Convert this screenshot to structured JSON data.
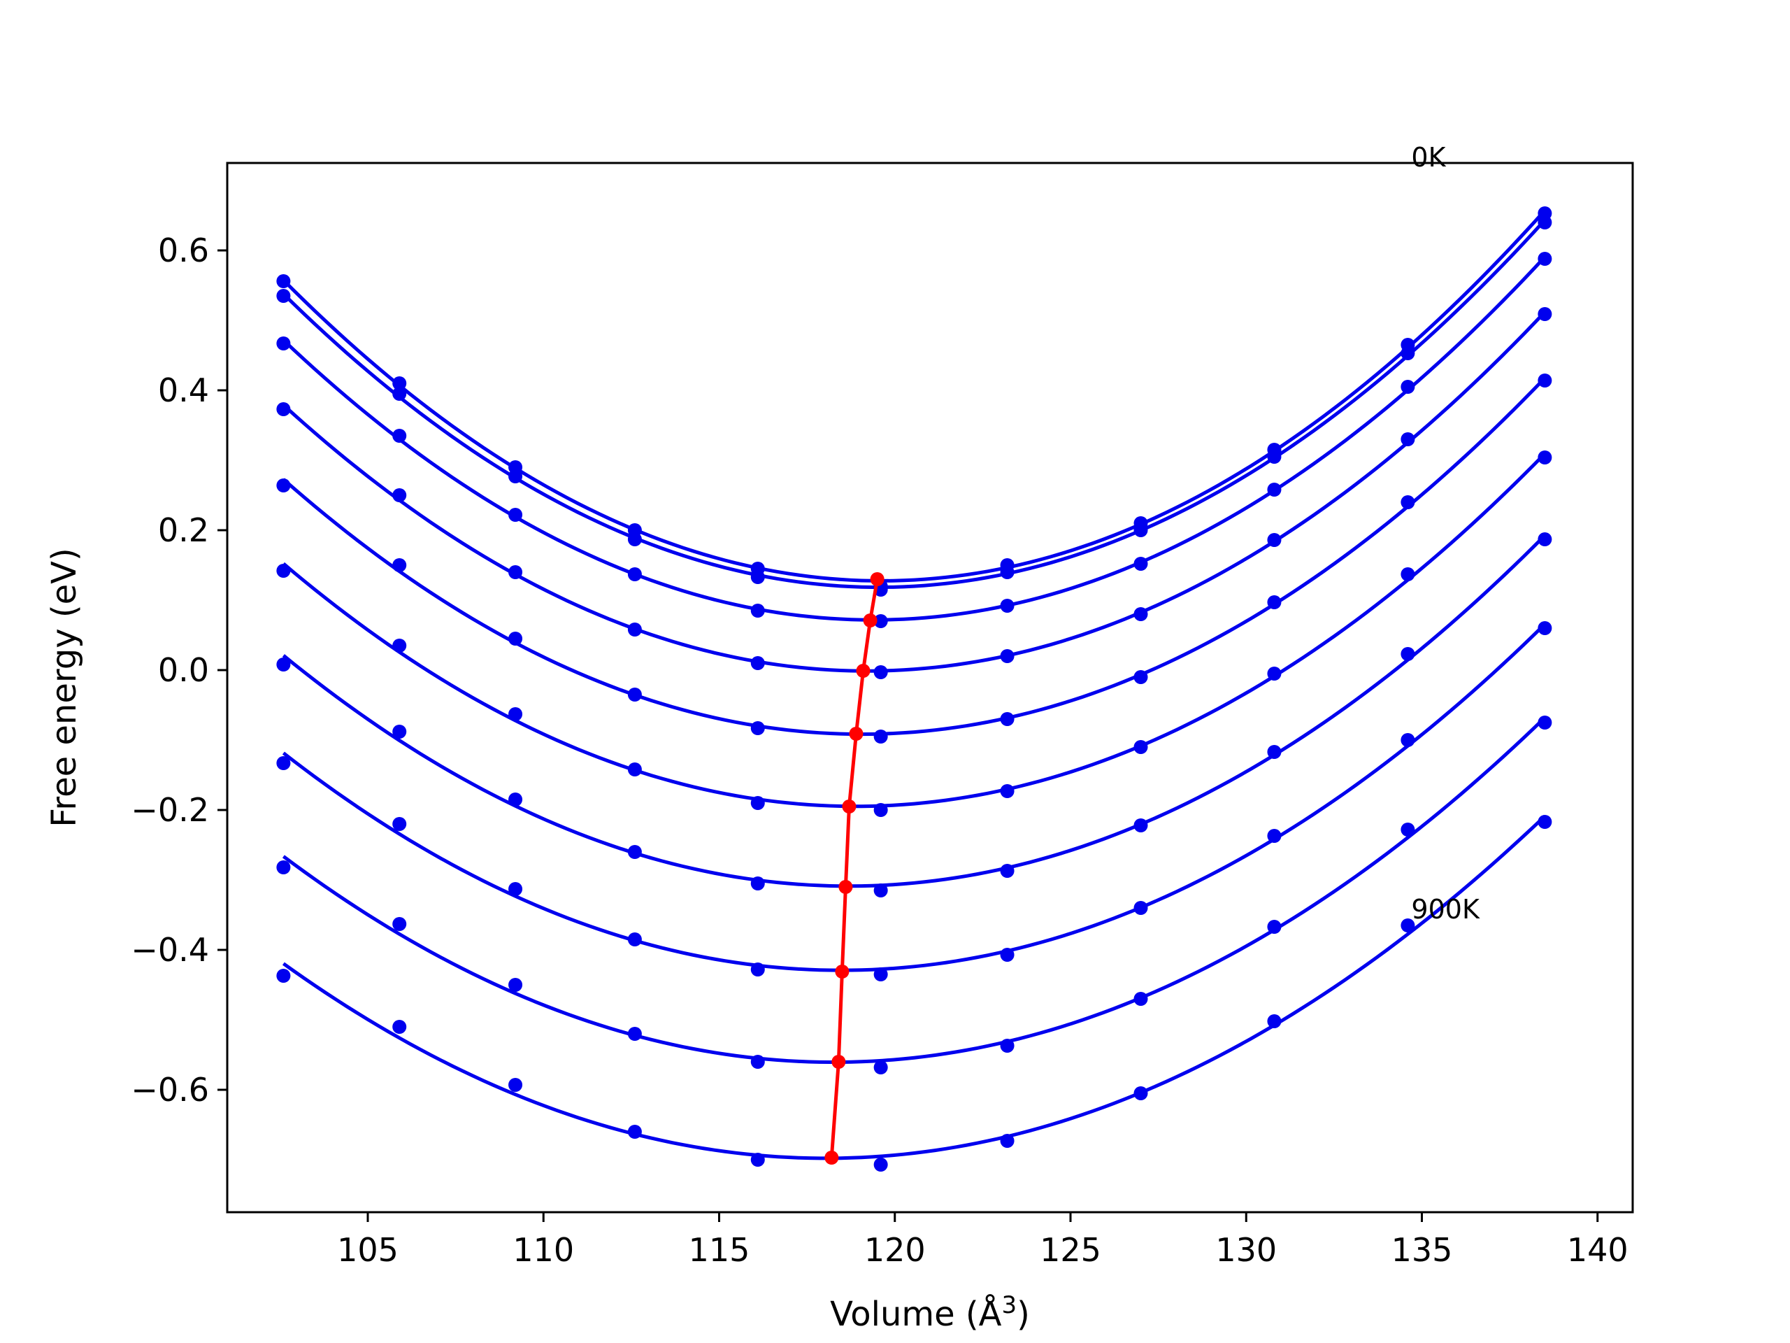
{
  "chart_data": {
    "type": "line",
    "xlabel": "Volume (Å",
    "xlabel_sup": "3",
    "xlabel_close": ")",
    "ylabel": "Free energy (eV)",
    "xlim": [
      101,
      141
    ],
    "ylim": [
      -0.775,
      0.725
    ],
    "x_ticks": [
      105,
      110,
      115,
      120,
      125,
      130,
      135,
      140
    ],
    "x_tick_labels": [
      "105",
      "110",
      "115",
      "120",
      "125",
      "130",
      "135",
      "140"
    ],
    "y_ticks": [
      -0.6,
      -0.4,
      -0.2,
      0.0,
      0.2,
      0.4,
      0.6
    ],
    "y_tick_labels": [
      "−0.6",
      "−0.4",
      "−0.2",
      "0.0",
      "0.2",
      "0.4",
      "0.6"
    ],
    "grid": false,
    "colors": {
      "curves": "#0000ee",
      "minima": "#ff0000"
    },
    "annotations": [
      {
        "text": "0K",
        "x": 134.7,
        "y": 0.72
      },
      {
        "text": "900K",
        "x": 134.7,
        "y": -0.355
      }
    ],
    "x": [
      102.6,
      105.9,
      109.2,
      112.6,
      116.1,
      119.6,
      123.2,
      127.0,
      130.8,
      134.6,
      138.5
    ],
    "series": [
      {
        "values": [
          0.556,
          0.41,
          0.29,
          0.2,
          0.145,
          0.12,
          0.15,
          0.21,
          0.315,
          0.465,
          0.653
        ]
      },
      {
        "values": [
          0.535,
          0.395,
          0.277,
          0.187,
          0.133,
          0.115,
          0.14,
          0.2,
          0.305,
          0.453,
          0.64
        ]
      },
      {
        "values": [
          0.467,
          0.335,
          0.222,
          0.137,
          0.085,
          0.07,
          0.092,
          0.152,
          0.258,
          0.405,
          0.588
        ]
      },
      {
        "values": [
          0.373,
          0.25,
          0.14,
          0.058,
          0.01,
          -0.003,
          0.02,
          0.08,
          0.186,
          0.33,
          0.509
        ]
      },
      {
        "values": [
          0.264,
          0.15,
          0.045,
          -0.035,
          -0.083,
          -0.095,
          -0.07,
          -0.01,
          0.097,
          0.24,
          0.414
        ]
      },
      {
        "values": [
          0.142,
          0.035,
          -0.063,
          -0.142,
          -0.19,
          -0.2,
          -0.173,
          -0.11,
          -0.005,
          0.137,
          0.304
        ]
      },
      {
        "values": [
          0.008,
          -0.088,
          -0.185,
          -0.26,
          -0.305,
          -0.315,
          -0.287,
          -0.222,
          -0.117,
          0.023,
          0.187
        ]
      },
      {
        "values": [
          -0.133,
          -0.22,
          -0.313,
          -0.385,
          -0.428,
          -0.435,
          -0.407,
          -0.34,
          -0.237,
          -0.1,
          0.06
        ]
      },
      {
        "values": [
          -0.282,
          -0.363,
          -0.45,
          -0.52,
          -0.56,
          -0.568,
          -0.537,
          -0.47,
          -0.367,
          -0.228,
          -0.075
        ]
      },
      {
        "values": [
          -0.437,
          -0.51,
          -0.593,
          -0.66,
          -0.7,
          -0.707,
          -0.673,
          -0.605,
          -0.502,
          -0.365,
          -0.217
        ]
      }
    ],
    "minima": {
      "x": [
        119.5,
        119.3,
        119.1,
        118.9,
        118.7,
        118.6,
        118.5,
        118.4,
        118.2
      ],
      "y": [
        0.13,
        0.071,
        -0.001,
        -0.091,
        -0.195,
        -0.31,
        -0.431,
        -0.56,
        -0.697
      ]
    }
  }
}
